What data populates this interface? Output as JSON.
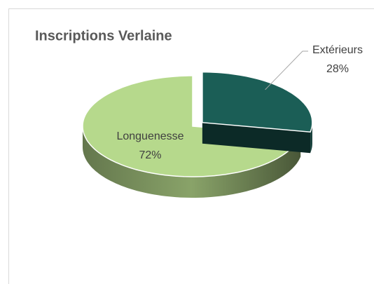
{
  "chart_data": {
    "type": "pie3d",
    "title": "Inscriptions Verlaine",
    "categories": [
      "Extérieurs",
      "Longuenesse"
    ],
    "values": [
      28,
      72
    ],
    "value_labels": [
      "28%",
      "72%"
    ],
    "colors": [
      "#1b5e56",
      "#b6d98c"
    ],
    "exploded": [
      true,
      false
    ]
  }
}
